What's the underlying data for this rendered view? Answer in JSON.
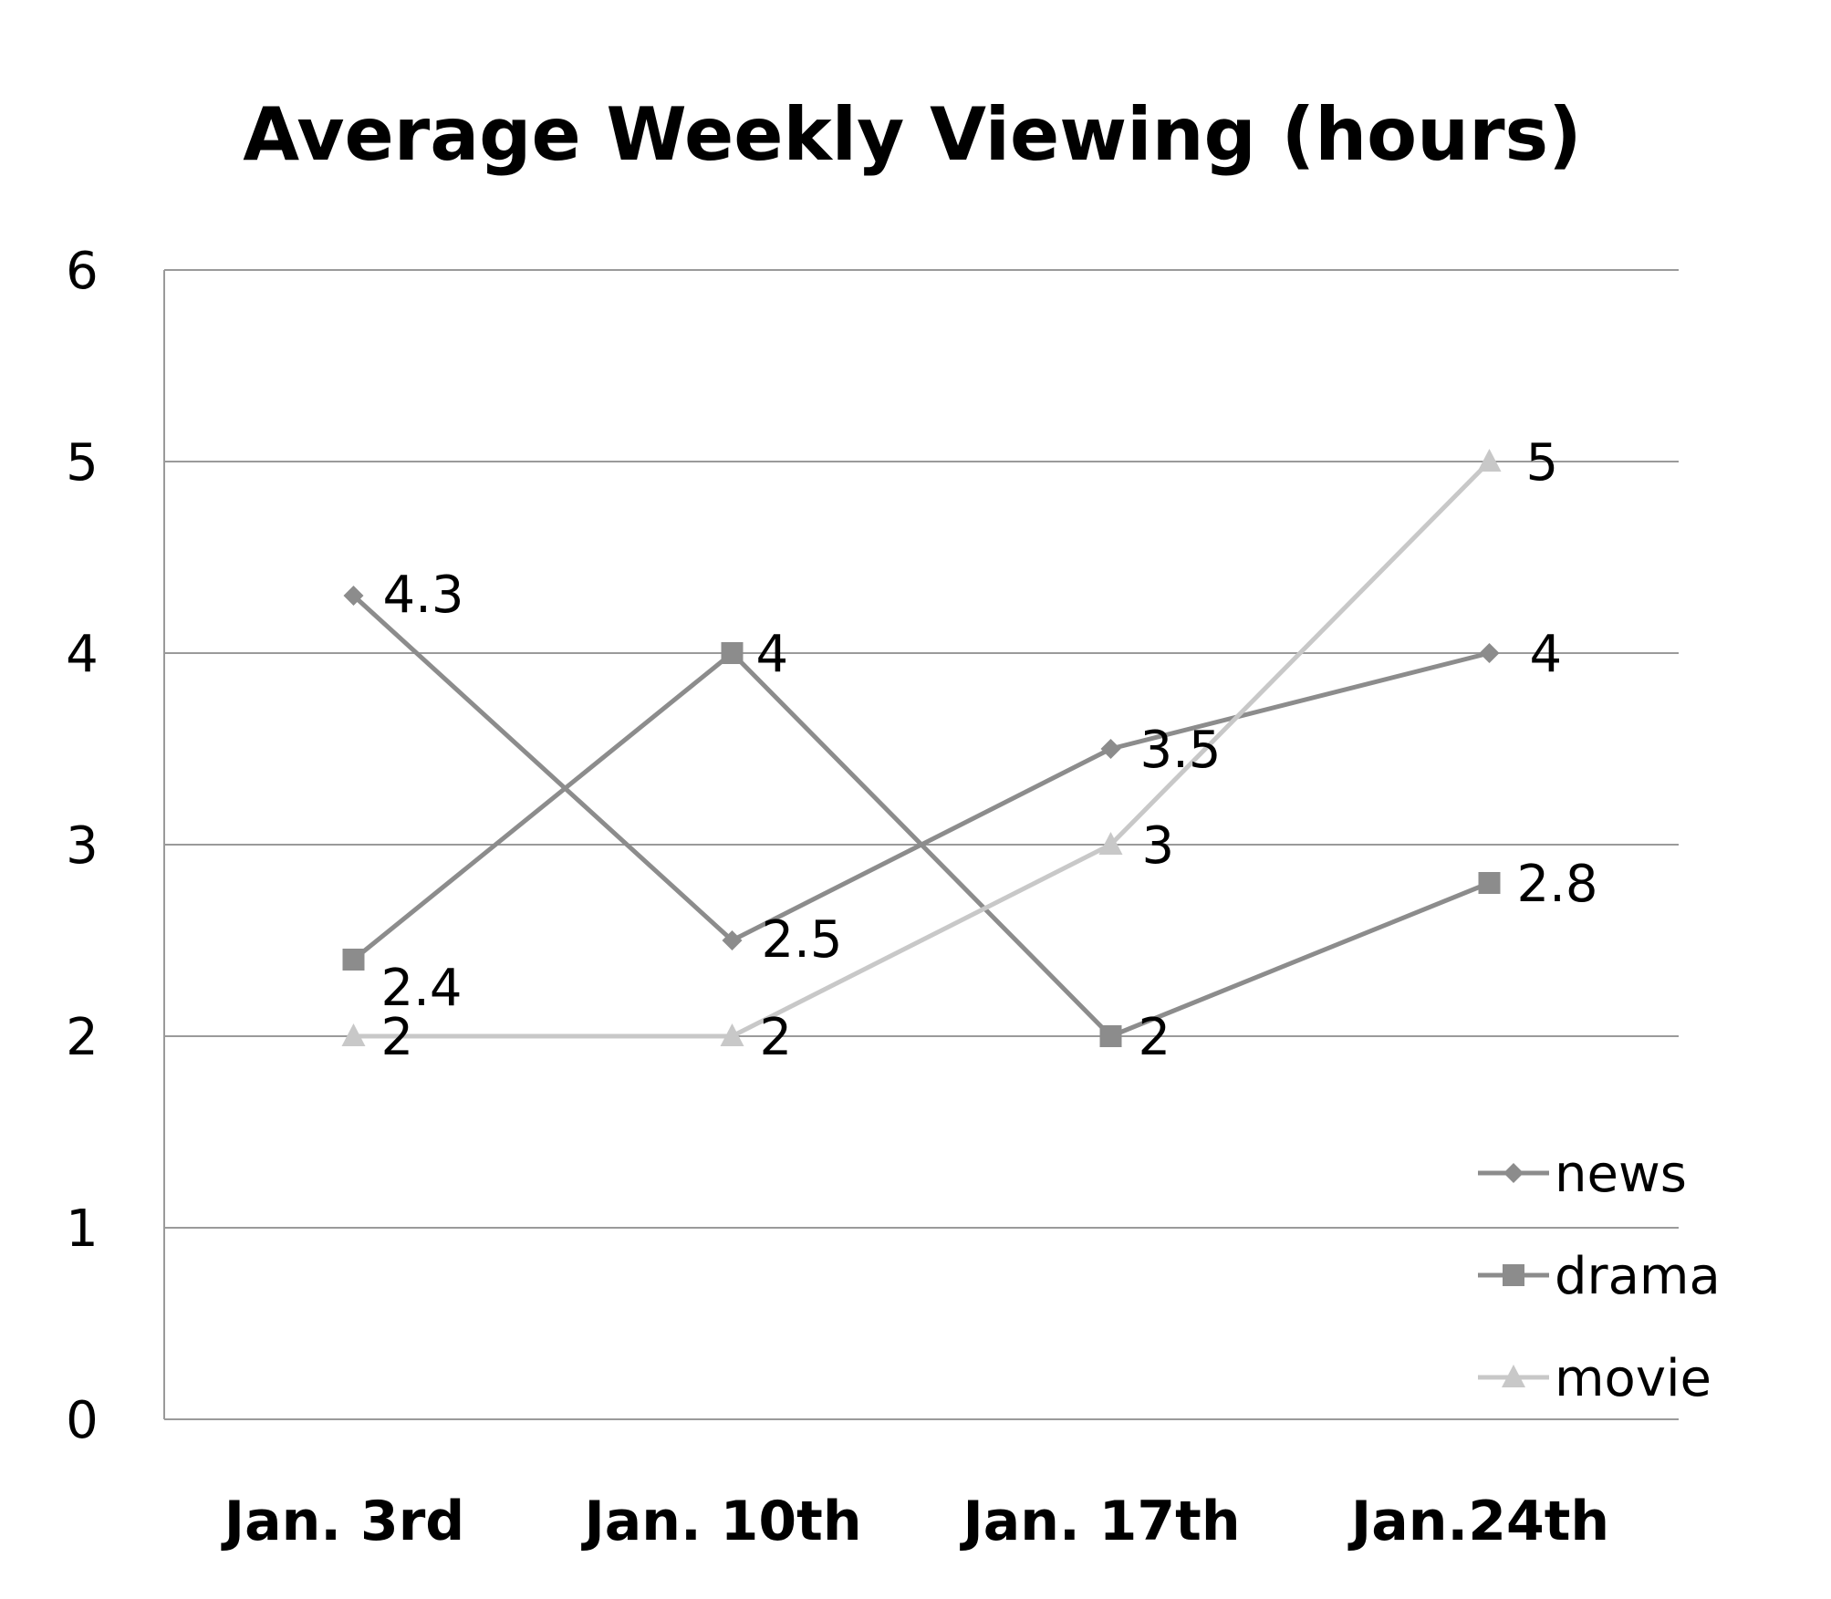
{
  "chart_data": {
    "type": "line",
    "title": "Average Weekly Viewing (hours)",
    "xlabel": "",
    "ylabel": "",
    "categories": [
      "Jan. 3rd",
      "Jan. 10th",
      "Jan. 17th",
      "Jan.24th"
    ],
    "ylim": [
      0,
      6
    ],
    "yticks": [
      "0",
      "1",
      "2",
      "3",
      "4",
      "5",
      "6"
    ],
    "grid": true,
    "legend_position": "bottom-right",
    "series": [
      {
        "name": "news",
        "marker": "diamond",
        "color": "#8c8c8c",
        "values": [
          4.3,
          2.5,
          3.5,
          4
        ],
        "labels": [
          "4.3",
          "2.5",
          "3.5",
          "4"
        ]
      },
      {
        "name": "drama",
        "marker": "square",
        "color": "#8c8c8c",
        "values": [
          2.4,
          4,
          2,
          2.8
        ],
        "labels": [
          "2.4",
          "4",
          "2",
          "2.8"
        ]
      },
      {
        "name": "movie",
        "marker": "triangle",
        "color": "#c8c8c8",
        "values": [
          2,
          2,
          3,
          5
        ],
        "labels": [
          "2",
          "2",
          "3",
          "5"
        ]
      }
    ]
  }
}
